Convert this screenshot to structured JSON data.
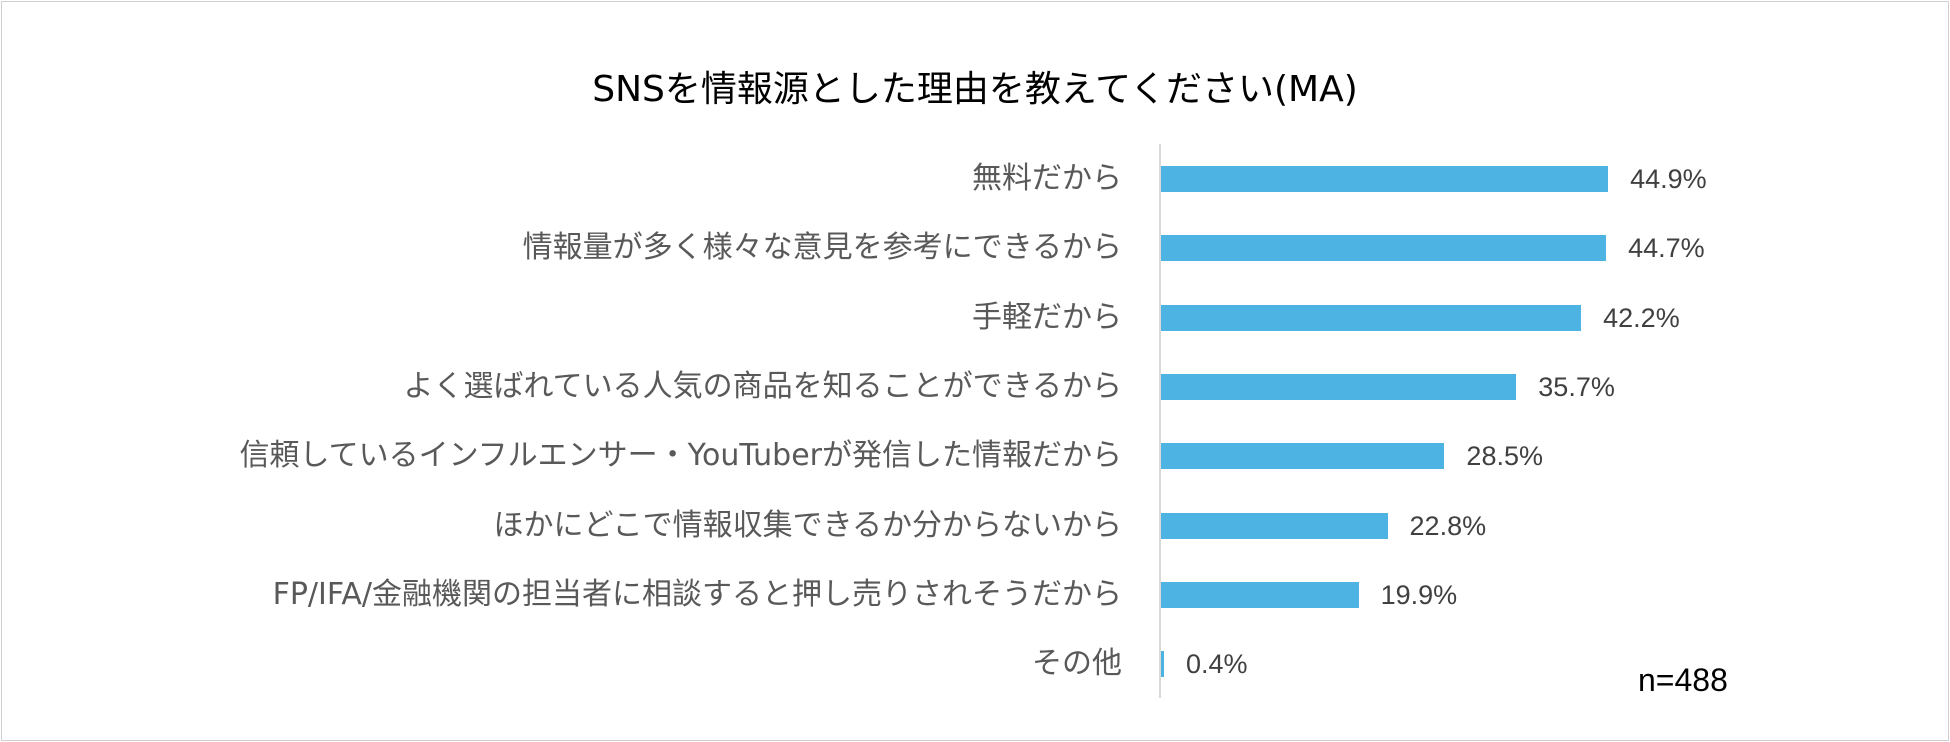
{
  "chart_data": {
    "type": "bar",
    "orientation": "horizontal",
    "title": "SNSを情報源とした理由を教えてください(MA)",
    "categories": [
      "無料だから",
      "情報量が多く様々な意見を参考にできるから",
      "手軽だから",
      "よく選ばれている人気の商品を知ることができるから",
      "信頼しているインフルエンサー・YouTuberが発信した情報だから",
      "ほかにどこで情報収集できるか分からないから",
      "FP/IFA/金融機関の担当者に相談すると押し売りされそうだから",
      "その他"
    ],
    "values": [
      44.9,
      44.7,
      42.2,
      35.7,
      28.5,
      22.8,
      19.9,
      0.4
    ],
    "value_labels": [
      "44.9%",
      "44.7%",
      "42.2%",
      "35.7%",
      "28.5%",
      "22.8%",
      "19.9%",
      "0.4%"
    ],
    "xlim": [
      0,
      100
    ],
    "grid": false,
    "legend": "none",
    "bar_color": "#4db3e2",
    "note": "n=488"
  }
}
